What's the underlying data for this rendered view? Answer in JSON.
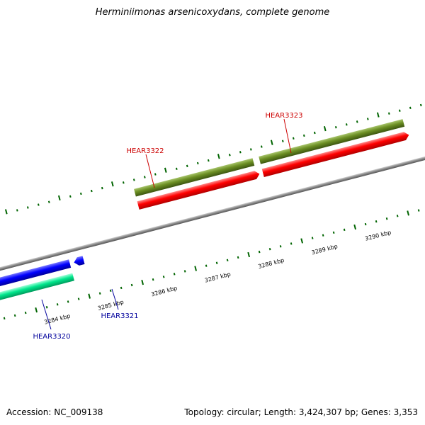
{
  "title": "Herminiimonas arsenicoxydans, complete genome",
  "footer": {
    "accession": "Accession: NC_009138",
    "stats": "Topology: circular; Length: 3,424,307 bp; Genes: 3,353"
  },
  "axis": {
    "kbp_labels": [
      "3284 kbp",
      "3285 kbp",
      "3286 kbp",
      "3287 kbp",
      "3288 kbp",
      "3289 kbp",
      "3290 kbp"
    ]
  },
  "genes": [
    {
      "id": "HEAR3320",
      "strand": "minus",
      "label_color": "#00009c"
    },
    {
      "id": "HEAR3321",
      "strand": "minus",
      "label_color": "#00009c"
    },
    {
      "id": "HEAR3322",
      "strand": "plus",
      "label_color": "#cc0000"
    },
    {
      "id": "HEAR3323",
      "strand": "plus",
      "label_color": "#cc0000"
    }
  ],
  "colors": {
    "backbone": "#888888",
    "cds_plus": "#ff0000",
    "cds_minus": "#0000ff",
    "gene_plus": "#6b8e23",
    "gene_minus": "#00e68c",
    "other_feature": "#ff9900",
    "tick": "#006400"
  }
}
